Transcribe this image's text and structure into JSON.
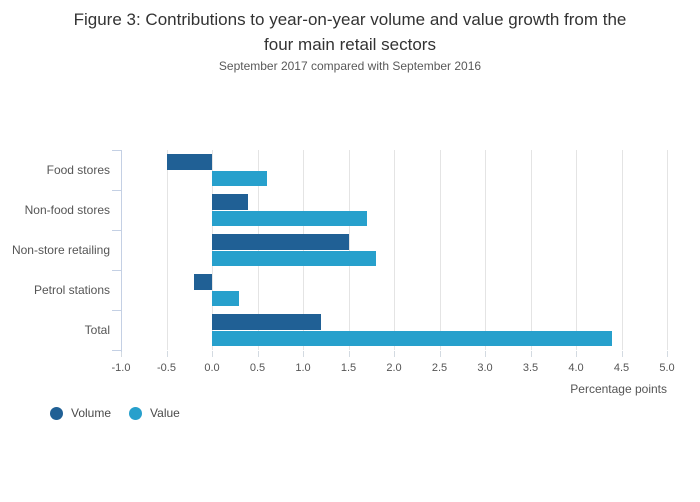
{
  "header": {
    "title_lines": [
      "Figure 3: Contributions to year-on-year volume and value growth from the",
      "four main retail sectors"
    ],
    "subtitle": "September 2017 compared with September 2016"
  },
  "chart_data": {
    "type": "bar",
    "orientation": "horizontal",
    "title": "Figure 3: Contributions to year-on-year volume and value growth from the four main retail sectors",
    "subtitle": "September 2017 compared with September 2016",
    "categories": [
      "Food stores",
      "Non-food stores",
      "Non-store retailing",
      "Petrol stations",
      "Total"
    ],
    "series": [
      {
        "name": "Volume",
        "color": "#206095",
        "values": [
          -0.5,
          0.4,
          1.5,
          -0.2,
          1.2
        ]
      },
      {
        "name": "Value",
        "color": "#27a0cc",
        "values": [
          0.6,
          1.7,
          1.8,
          0.3,
          4.4
        ]
      }
    ],
    "xlabel": "Percentage points",
    "xlim": [
      -1.0,
      5.0
    ],
    "xtick_step": 0.5,
    "xtick_labels": [
      "-1.0",
      "-0.5",
      "0.0",
      "0.5",
      "1.0",
      "1.5",
      "2.0",
      "2.5",
      "3.0",
      "3.5",
      "4.0",
      "4.5",
      "5.0"
    ],
    "grid": true,
    "legend_position": "bottom-left"
  },
  "legend": {
    "items": [
      {
        "label": "Volume",
        "color": "#206095"
      },
      {
        "label": "Value",
        "color": "#27a0cc"
      }
    ]
  },
  "colors": {
    "volume": "#206095",
    "value": "#27a0cc",
    "axis": "#c4d0e4",
    "gridline": "#e4e4e4",
    "text_title": "#333333",
    "text_muted": "#555555"
  }
}
